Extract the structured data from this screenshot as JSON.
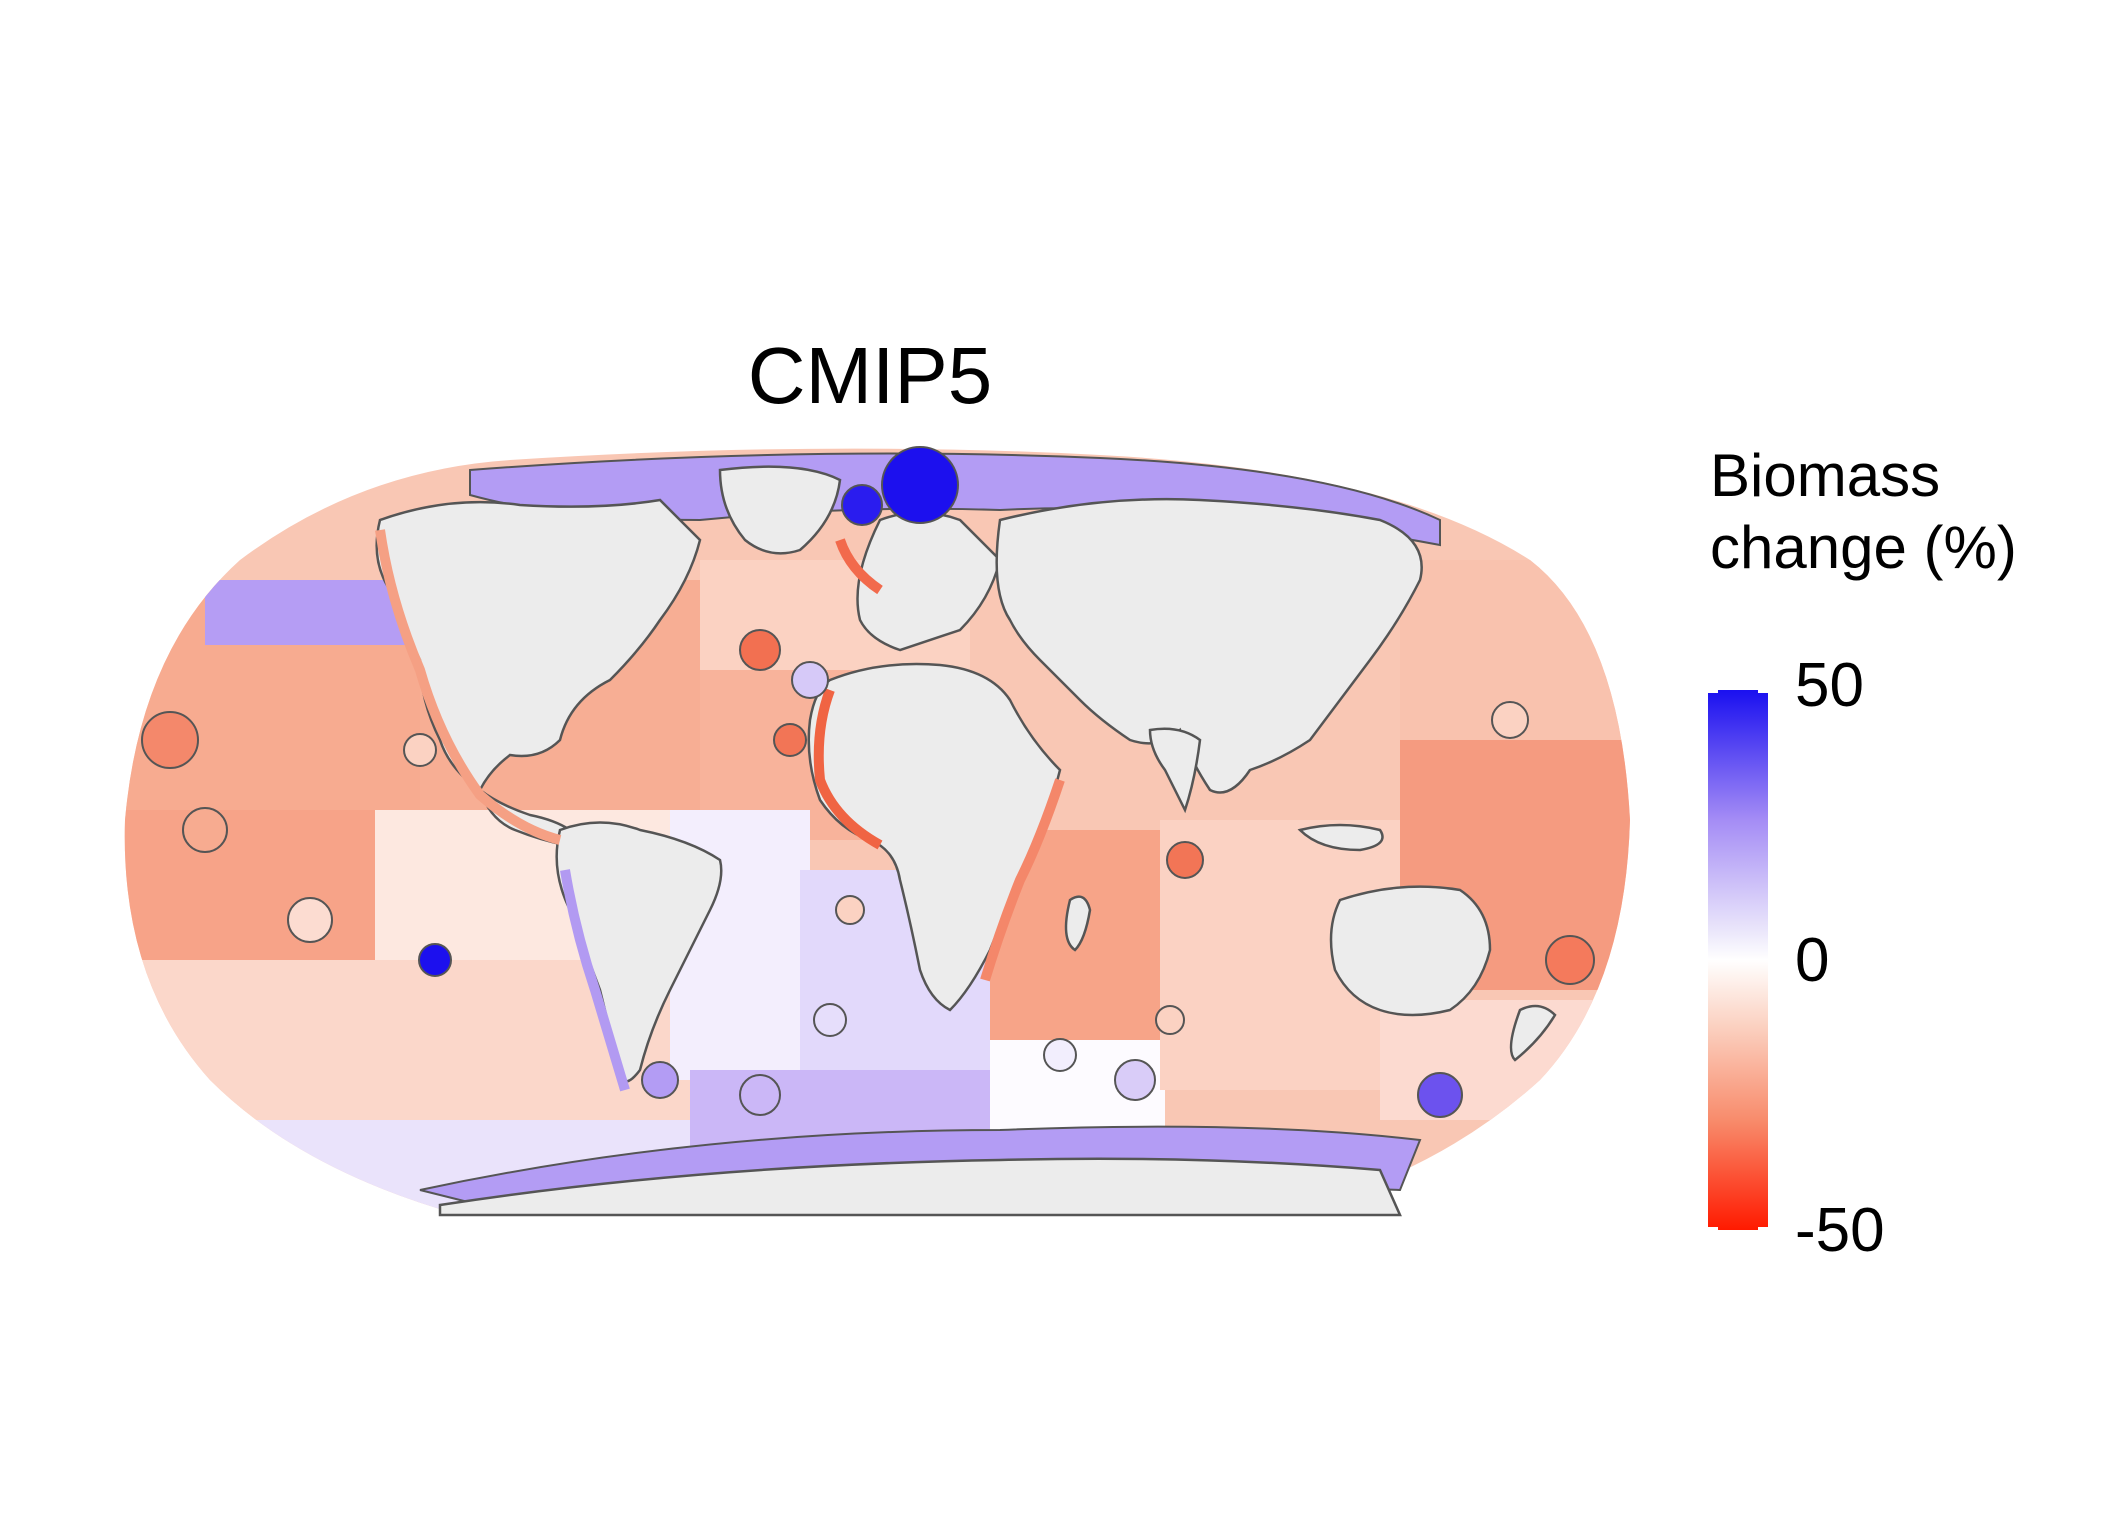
{
  "map": {
    "title": "CMIP5"
  },
  "legend": {
    "title_line1": "Biomass",
    "title_line2": "change (%)",
    "ticks": [
      "50",
      "0",
      "-50"
    ],
    "scale": {
      "max": 50,
      "mid": 0,
      "min": -50
    },
    "colors": {
      "high": "#1a10f0",
      "mid": "#ffffff",
      "low": "#ff1a00"
    }
  },
  "colors": {
    "land": "#ececec",
    "border": "#555555"
  }
}
